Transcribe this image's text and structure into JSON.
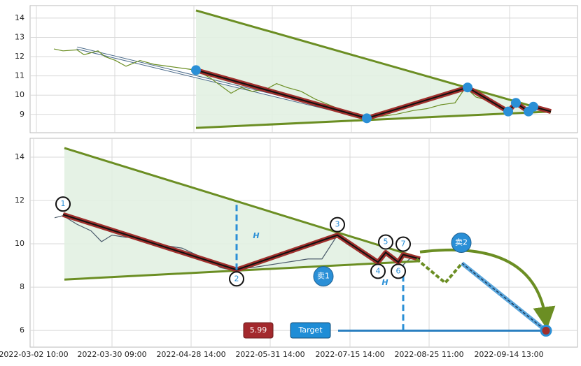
{
  "chart_data": [
    {
      "type": "line",
      "xlim": [
        0,
        782
      ],
      "xticks": [
        9,
        121,
        234,
        346,
        459,
        572,
        685
      ],
      "ylim": [
        8.05,
        14.65
      ],
      "yticks": [
        9,
        10,
        11,
        12,
        13,
        14
      ],
      "grid": true,
      "price": {
        "color": "#6b8e23",
        "x": [
          34,
          47,
          67,
          77,
          97,
          107,
          122,
          137,
          157,
          177,
          197,
          217,
          237,
          257,
          272,
          287,
          302,
          317,
          337,
          352,
          367,
          387,
          407,
          427,
          447,
          467,
          482,
          502,
          522,
          547,
          567,
          587,
          607,
          622,
          637,
          657,
          677,
          692,
          707,
          717,
          732,
          744
        ],
        "values": [
          12.4,
          12.3,
          12.35,
          12.1,
          12.3,
          12.0,
          11.8,
          11.5,
          11.8,
          11.6,
          11.5,
          11.4,
          11.3,
          10.9,
          10.5,
          10.1,
          10.4,
          10.2,
          10.3,
          10.6,
          10.4,
          10.2,
          9.8,
          9.5,
          9.2,
          8.9,
          8.8,
          8.9,
          9.0,
          9.2,
          9.3,
          9.5,
          9.6,
          10.4,
          9.9,
          9.7,
          9.2,
          9.5,
          9.3,
          9.4,
          9.2,
          9.1
        ]
      },
      "guide": {
        "color": "#4a6a8a",
        "x": [
          67,
          472
        ],
        "values": [
          12.45,
          8.9
        ]
      },
      "upper_line": {
        "color": "#6b8e23",
        "x": [
          237,
          744
        ],
        "values": [
          14.4,
          9.15
        ]
      },
      "lower_line": {
        "color": "#6b8e23",
        "x": [
          237,
          744
        ],
        "values": [
          8.3,
          9.15
        ]
      },
      "zigzag": {
        "color": "#a0302d",
        "x": [
          237,
          481,
          625,
          683,
          694,
          712,
          719,
          744
        ],
        "values": [
          11.3,
          8.8,
          10.4,
          9.15,
          9.6,
          9.15,
          9.4,
          9.15
        ]
      }
    },
    {
      "type": "line",
      "xlim": [
        0,
        782
      ],
      "xticks": [
        {
          "value": 5,
          "label": "2022-03-02 10:00"
        },
        {
          "value": 117,
          "label": "2022-03-30 09:00"
        },
        {
          "value": 230,
          "label": "2022-04-28 14:00"
        },
        {
          "value": 343,
          "label": "2022-05-31 14:00"
        },
        {
          "value": 457,
          "label": "2022-07-15 14:00"
        },
        {
          "value": 570,
          "label": "2022-08-25 11:00"
        },
        {
          "value": 684,
          "label": "2022-09-14 13:00"
        }
      ],
      "ylim": [
        5.23,
        14.87
      ],
      "yticks": [
        6,
        8,
        10,
        12,
        14
      ],
      "grid": true,
      "price": {
        "color": "#4a5a6a",
        "x": [
          35,
          47,
          67,
          87,
          102,
          117,
          137,
          157,
          177,
          197,
          217,
          237,
          257,
          272,
          287,
          295,
          317,
          337,
          357,
          377,
          397,
          417,
          439,
          452,
          467,
          482,
          497,
          507,
          522,
          532,
          542,
          552
        ],
        "values": [
          11.2,
          11.3,
          10.9,
          10.6,
          10.1,
          10.4,
          10.3,
          10.3,
          10.1,
          9.9,
          9.8,
          9.5,
          9.2,
          8.9,
          8.8,
          8.85,
          8.9,
          9.0,
          9.1,
          9.2,
          9.3,
          9.3,
          10.4,
          10.0,
          9.7,
          9.4,
          9.1,
          9.5,
          9.2,
          9.0,
          9.3,
          9.35
        ]
      },
      "upper_line": {
        "color": "#6b8e23",
        "x": [
          49,
          557
        ],
        "values": [
          14.42,
          9.35
        ]
      },
      "lower_line": {
        "color": "#6b8e23",
        "x": [
          49,
          557
        ],
        "values": [
          8.35,
          9.2
        ]
      },
      "zigzag": {
        "color": "#a0302d",
        "x": [
          47,
          295,
          439,
          497,
          508,
          526,
          533,
          557
        ],
        "values": [
          11.35,
          8.8,
          10.4,
          9.15,
          9.6,
          9.15,
          9.5,
          9.3
        ]
      },
      "pivot_labels": [
        "1",
        "2",
        "3",
        "4",
        "5",
        "6",
        "7"
      ],
      "projection": {
        "color": "#6b8e23",
        "x": [
          552,
          593,
          617
        ],
        "values": [
          9.3,
          8.2,
          9.1
        ]
      },
      "target_path": {
        "color": "#5aa6dc",
        "x": [
          617,
          737
        ],
        "values": [
          9.1,
          5.99
        ]
      },
      "h_lines": [
        {
          "label": "H",
          "x": 295,
          "values": [
            8.8,
            11.9
          ]
        },
        {
          "label": "H",
          "x": 533,
          "values": [
            9.0,
            5.99
          ]
        }
      ],
      "sell_points": [
        {
          "label": "卖1",
          "x": 419,
          "y": 8.5
        },
        {
          "label": "卖2",
          "x": 616,
          "y": 10.05
        }
      ],
      "target": 5.99,
      "target_x": 737,
      "target_button": "Target"
    }
  ]
}
